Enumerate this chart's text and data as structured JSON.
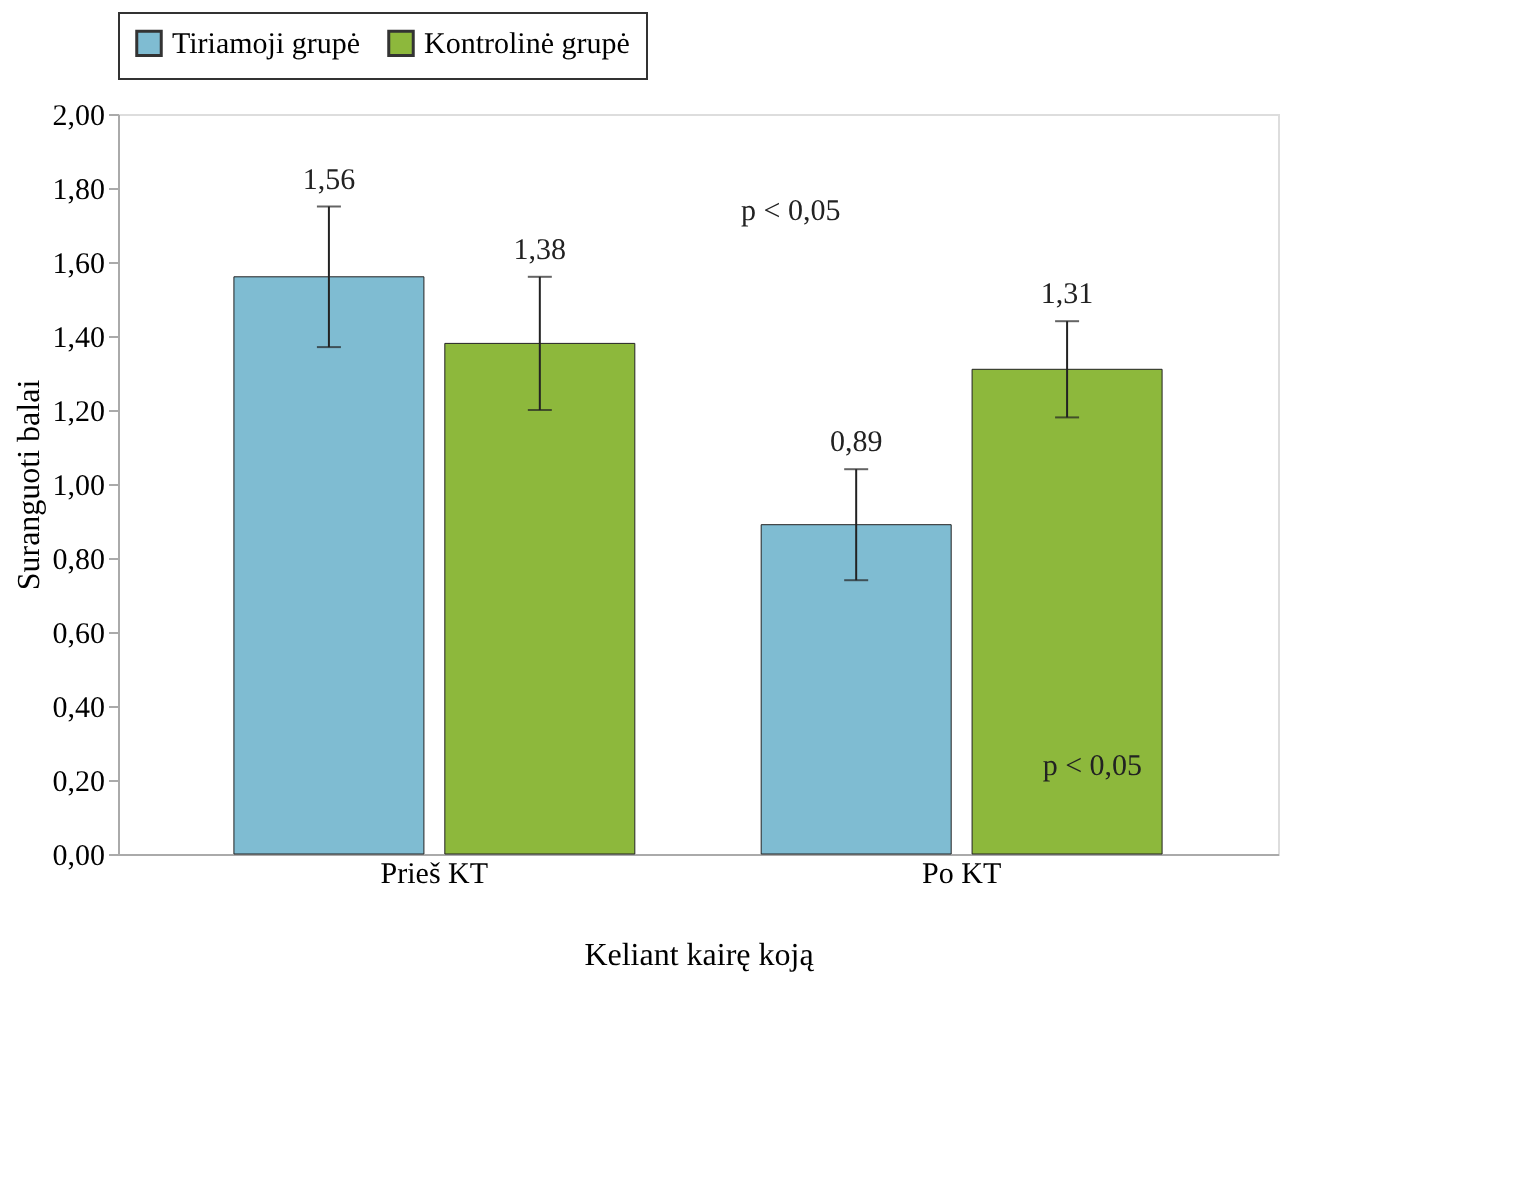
{
  "chart_data": {
    "type": "bar",
    "categories": [
      "Prieš KT",
      "Po KT"
    ],
    "series": [
      {
        "name": "Tiriamoji grupė",
        "color": "#7fbcd2",
        "values": [
          1.56,
          0.89
        ],
        "errors": [
          [
            1.37,
            1.75
          ],
          [
            0.74,
            1.04
          ]
        ]
      },
      {
        "name": "Kontrolinė grupė",
        "color": "#8db83c",
        "values": [
          1.38,
          1.31
        ],
        "errors": [
          [
            1.2,
            1.56
          ],
          [
            1.18,
            1.44
          ]
        ]
      }
    ],
    "xlabel": "Keliant kairę koją",
    "ylabel": "Suranguoti balai",
    "ylim": [
      0,
      2
    ],
    "yticks": [
      {
        "value": 0,
        "label": "0,00"
      },
      {
        "value": 0.2,
        "label": "0,20"
      },
      {
        "value": 0.4,
        "label": "0,40"
      },
      {
        "value": 0.6,
        "label": "0,60"
      },
      {
        "value": 0.8,
        "label": "0,80"
      },
      {
        "value": 1.0,
        "label": "1,00"
      },
      {
        "value": 1.2,
        "label": "1,20"
      },
      {
        "value": 1.4,
        "label": "1,40"
      },
      {
        "value": 1.6,
        "label": "1,60"
      },
      {
        "value": 1.8,
        "label": "1,80"
      },
      {
        "value": 2.0,
        "label": "2,00"
      }
    ],
    "value_labels": [
      "1,56",
      "0,89",
      "1,38",
      "1,31"
    ],
    "annotations": [
      "p < 0,05",
      "p < 0,05"
    ],
    "legend": "top",
    "grid": false
  }
}
